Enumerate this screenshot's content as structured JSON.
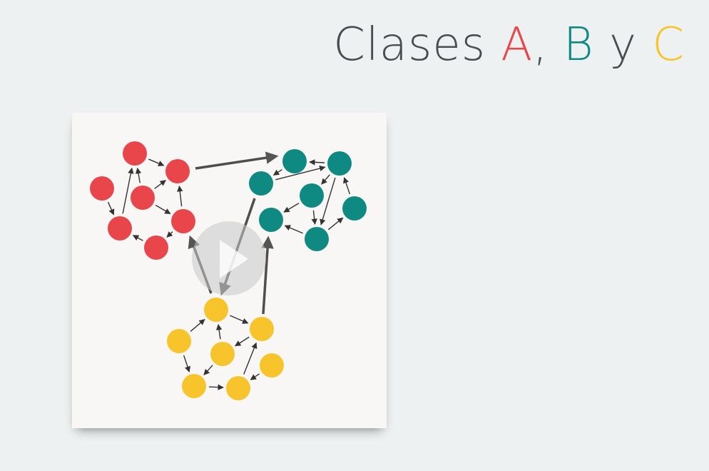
{
  "title": {
    "prefix": "Clases ",
    "a": "A",
    "sep1": ", ",
    "b": "B",
    "sep2": " y ",
    "c": "C"
  },
  "colors": {
    "class_a": "#e8464a",
    "class_b": "#0f8a82",
    "class_c": "#f8c42c",
    "title_text": "#4a4d50",
    "arrow": "#4e4e4e"
  },
  "diagram": {
    "clusters": [
      {
        "name": "A",
        "node_count": 7
      },
      {
        "name": "B",
        "node_count": 7
      },
      {
        "name": "C",
        "node_count": 7
      }
    ]
  },
  "video": {
    "play_icon": "play-icon"
  }
}
